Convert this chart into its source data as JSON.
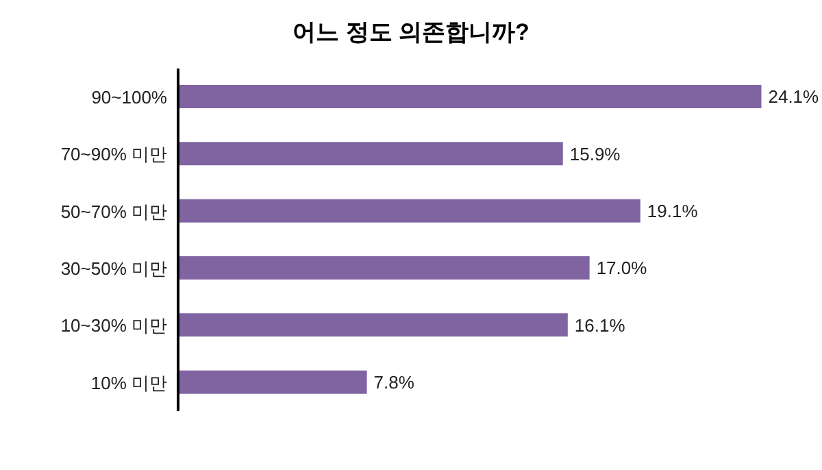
{
  "chart_data": {
    "type": "bar",
    "orientation": "horizontal",
    "title": "어느 정도 의존합니까?",
    "categories": [
      "90~100%",
      "70~90% 미만",
      "50~70% 미만",
      "30~50% 미만",
      "10~30% 미만",
      "10% 미만"
    ],
    "values": [
      24.1,
      15.9,
      19.1,
      17.0,
      16.1,
      7.8
    ],
    "value_labels": [
      "24.1%",
      "15.9%",
      "19.1%",
      "17.0%",
      "16.1%",
      "7.8%"
    ],
    "color": "#8064a2"
  }
}
